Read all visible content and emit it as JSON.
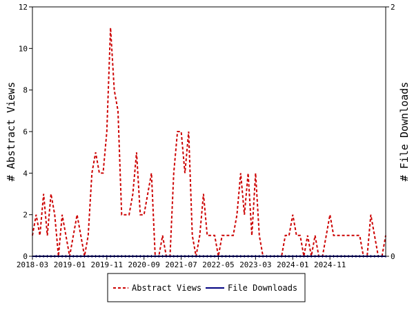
{
  "chart_data": {
    "type": "line",
    "ylabel": "# Abstract Views",
    "y2label": "# File Downloads",
    "ylim": [
      0,
      12
    ],
    "y2lim": [
      0,
      2
    ],
    "yticks": [
      0,
      2,
      4,
      6,
      8,
      10,
      12
    ],
    "y2ticks": [
      0,
      2
    ],
    "xticks": [
      "2018-03",
      "2019-01",
      "2019-11",
      "2020-09",
      "2021-07",
      "2022-05",
      "2023-03",
      "2024-01",
      "2024-11"
    ],
    "grid": false,
    "legend_position": "bottom",
    "colors": {
      "abstract_views": "#cc0000",
      "file_downloads": "#000080"
    },
    "series": [
      {
        "name": "Abstract Views",
        "color": "#cc0000",
        "style": "dashed",
        "axis": "left",
        "x_start": "2018-03",
        "values": [
          1,
          2,
          1,
          3,
          1,
          3,
          2,
          0,
          2,
          1,
          0,
          1,
          2,
          1,
          0,
          1,
          4,
          5,
          4,
          4,
          6,
          11,
          8,
          7,
          2,
          2,
          2,
          3,
          5,
          2,
          2,
          3,
          4,
          0,
          0,
          1,
          0,
          0,
          4,
          6,
          6,
          4,
          6,
          1,
          0,
          1,
          3,
          1,
          1,
          1,
          0,
          1,
          1,
          1,
          1,
          2,
          4,
          2,
          4,
          1,
          4,
          1,
          0,
          0,
          0,
          0,
          0,
          0,
          1,
          1,
          2,
          1,
          1,
          0,
          1,
          0,
          1,
          0,
          0,
          1,
          2,
          1,
          1,
          1,
          1,
          1,
          1,
          1,
          1,
          0,
          0,
          2,
          1,
          0,
          0,
          1
        ]
      },
      {
        "name": "File Downloads",
        "color": "#000080",
        "style": "solid",
        "axis": "right",
        "x_start": "2018-03",
        "values": [
          0,
          0,
          0,
          0,
          0,
          0,
          0,
          0,
          0,
          0,
          0,
          0,
          0,
          0,
          0,
          0,
          0,
          0,
          0,
          0,
          0,
          0,
          0,
          0,
          0,
          0,
          0,
          0,
          0,
          0,
          0,
          0,
          0,
          0,
          0,
          0,
          0,
          0,
          0,
          0,
          0,
          0,
          0,
          0,
          0,
          0,
          0,
          0,
          0,
          0,
          0,
          0,
          0,
          0,
          0,
          0,
          0,
          0,
          0,
          0,
          0,
          0,
          0,
          0,
          0,
          0,
          0,
          0,
          0,
          0,
          0,
          0,
          0,
          0,
          0,
          0,
          0,
          0,
          0,
          0,
          0,
          0,
          0,
          0,
          0,
          0,
          0,
          0,
          0,
          0,
          0,
          0,
          0,
          0,
          0,
          0
        ]
      }
    ]
  }
}
